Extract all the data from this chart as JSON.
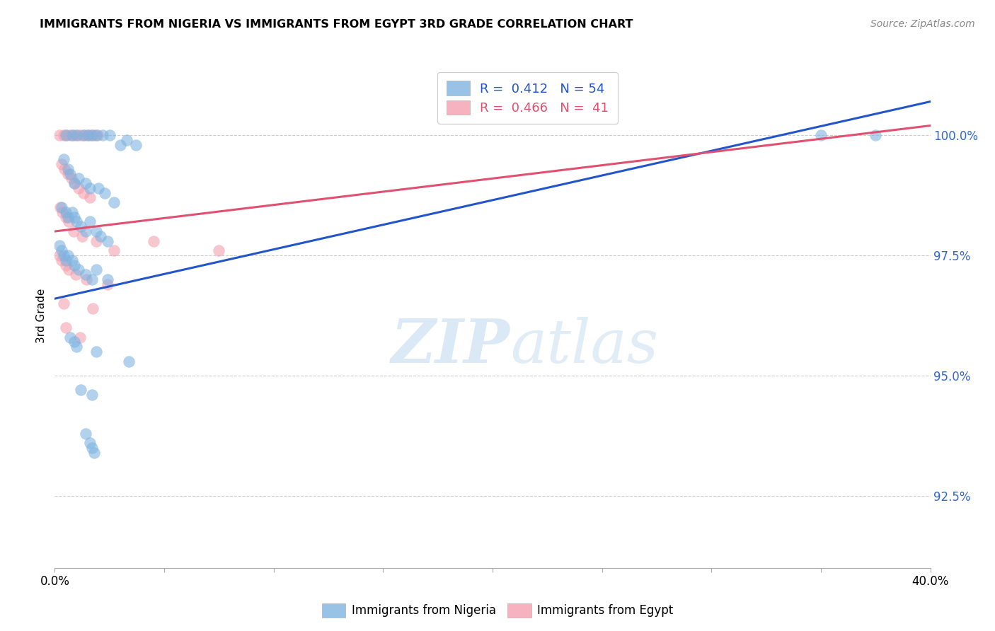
{
  "title": "IMMIGRANTS FROM NIGERIA VS IMMIGRANTS FROM EGYPT 3RD GRADE CORRELATION CHART",
  "source": "Source: ZipAtlas.com",
  "ylabel": "3rd Grade",
  "ytick_values": [
    92.5,
    95.0,
    97.5,
    100.0
  ],
  "xlim": [
    0.0,
    40.0
  ],
  "ylim": [
    91.0,
    101.5
  ],
  "watermark_zip": "ZIP",
  "watermark_atlas": "atlas",
  "nigeria_color": "#7EB3E0",
  "egypt_color": "#F4A0B0",
  "nigeria_trendline_color": "#2255CC",
  "egypt_trendline_color": "#E05070",
  "nigeria_scatter": [
    [
      0.5,
      100.0
    ],
    [
      0.8,
      100.0
    ],
    [
      1.0,
      100.0
    ],
    [
      1.3,
      100.0
    ],
    [
      1.5,
      100.0
    ],
    [
      1.7,
      100.0
    ],
    [
      1.9,
      100.0
    ],
    [
      2.2,
      100.0
    ],
    [
      2.5,
      100.0
    ],
    [
      3.0,
      99.8
    ],
    [
      3.3,
      99.9
    ],
    [
      3.7,
      99.8
    ],
    [
      0.4,
      99.5
    ],
    [
      0.6,
      99.3
    ],
    [
      0.7,
      99.2
    ],
    [
      0.9,
      99.0
    ],
    [
      1.1,
      99.1
    ],
    [
      1.4,
      99.0
    ],
    [
      1.6,
      98.9
    ],
    [
      2.0,
      98.9
    ],
    [
      2.3,
      98.8
    ],
    [
      2.7,
      98.6
    ],
    [
      0.3,
      98.5
    ],
    [
      0.5,
      98.4
    ],
    [
      0.6,
      98.3
    ],
    [
      0.8,
      98.4
    ],
    [
      0.9,
      98.3
    ],
    [
      1.0,
      98.2
    ],
    [
      1.2,
      98.1
    ],
    [
      1.4,
      98.0
    ],
    [
      1.6,
      98.2
    ],
    [
      1.9,
      98.0
    ],
    [
      2.1,
      97.9
    ],
    [
      2.4,
      97.8
    ],
    [
      0.2,
      97.7
    ],
    [
      0.3,
      97.6
    ],
    [
      0.4,
      97.5
    ],
    [
      0.5,
      97.4
    ],
    [
      0.6,
      97.5
    ],
    [
      0.8,
      97.4
    ],
    [
      0.9,
      97.3
    ],
    [
      1.1,
      97.2
    ],
    [
      1.4,
      97.1
    ],
    [
      1.7,
      97.0
    ],
    [
      1.9,
      97.2
    ],
    [
      2.4,
      97.0
    ],
    [
      0.7,
      95.8
    ],
    [
      0.9,
      95.7
    ],
    [
      1.0,
      95.6
    ],
    [
      1.9,
      95.5
    ],
    [
      3.4,
      95.3
    ],
    [
      1.2,
      94.7
    ],
    [
      1.7,
      94.6
    ],
    [
      1.4,
      93.8
    ],
    [
      1.6,
      93.6
    ],
    [
      1.7,
      93.5
    ],
    [
      1.8,
      93.4
    ],
    [
      35.0,
      100.0
    ],
    [
      37.5,
      100.0
    ]
  ],
  "egypt_scatter": [
    [
      0.2,
      100.0
    ],
    [
      0.4,
      100.0
    ],
    [
      0.55,
      100.0
    ],
    [
      0.7,
      100.0
    ],
    [
      0.85,
      100.0
    ],
    [
      1.05,
      100.0
    ],
    [
      1.2,
      100.0
    ],
    [
      1.35,
      100.0
    ],
    [
      1.5,
      100.0
    ],
    [
      1.65,
      100.0
    ],
    [
      1.8,
      100.0
    ],
    [
      1.95,
      100.0
    ],
    [
      0.3,
      99.4
    ],
    [
      0.45,
      99.3
    ],
    [
      0.6,
      99.2
    ],
    [
      0.75,
      99.1
    ],
    [
      0.9,
      99.0
    ],
    [
      1.1,
      98.9
    ],
    [
      1.3,
      98.8
    ],
    [
      1.6,
      98.7
    ],
    [
      0.25,
      98.5
    ],
    [
      0.35,
      98.4
    ],
    [
      0.5,
      98.3
    ],
    [
      0.65,
      98.2
    ],
    [
      0.85,
      98.0
    ],
    [
      1.25,
      97.9
    ],
    [
      1.9,
      97.8
    ],
    [
      0.2,
      97.5
    ],
    [
      0.3,
      97.4
    ],
    [
      0.5,
      97.3
    ],
    [
      0.65,
      97.2
    ],
    [
      0.95,
      97.1
    ],
    [
      1.45,
      97.0
    ],
    [
      2.4,
      96.9
    ],
    [
      0.4,
      96.5
    ],
    [
      1.75,
      96.4
    ],
    [
      2.7,
      97.6
    ],
    [
      0.5,
      96.0
    ],
    [
      1.15,
      95.8
    ],
    [
      4.5,
      97.8
    ],
    [
      7.5,
      97.6
    ]
  ],
  "nigeria_trend_x": [
    0.0,
    40.0
  ],
  "nigeria_trend_y": [
    96.6,
    100.7
  ],
  "egypt_trend_x": [
    0.0,
    40.0
  ],
  "egypt_trend_y": [
    98.0,
    100.2
  ]
}
